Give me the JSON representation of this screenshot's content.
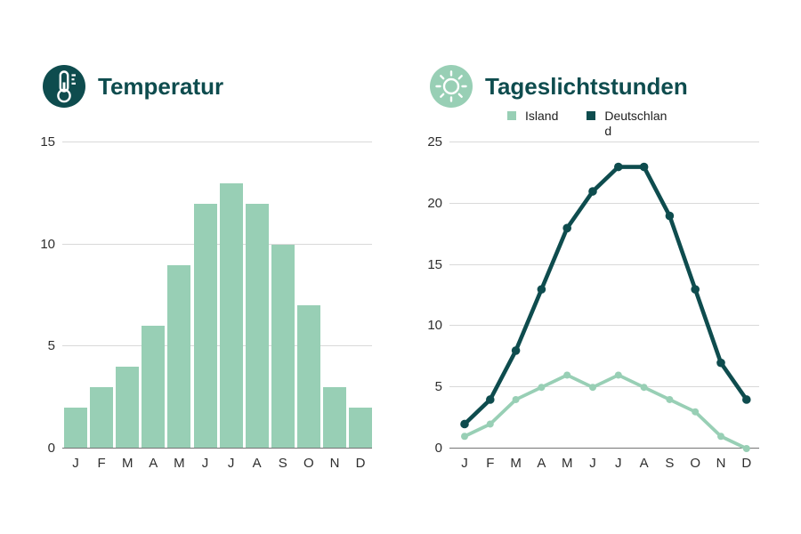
{
  "colors": {
    "dark_teal": "#0e4c4e",
    "light_green": "#98cfb5",
    "gridline": "#d9d9d9",
    "axis_line": "#757575",
    "tick_text": "#2e2e2e",
    "legend_text": "#1f1f1f",
    "background": "#ffffff"
  },
  "chart_data": [
    {
      "type": "bar",
      "title": "Temperatur",
      "icon": "thermometer-icon",
      "categories": [
        "J",
        "F",
        "M",
        "A",
        "M",
        "J",
        "J",
        "A",
        "S",
        "O",
        "N",
        "D"
      ],
      "values": [
        2,
        3,
        4,
        6,
        9,
        12,
        13,
        12,
        10,
        7,
        3,
        2
      ],
      "xlabel": "",
      "ylabel": "",
      "ylim": [
        0,
        15
      ],
      "yticks": [
        0,
        5,
        10,
        15
      ],
      "grid": true,
      "bar_color": "#98cfb5"
    },
    {
      "type": "line",
      "title": "Tageslichtstunden",
      "icon": "sun-icon",
      "categories": [
        "J",
        "F",
        "M",
        "A",
        "M",
        "J",
        "J",
        "A",
        "S",
        "O",
        "N",
        "D"
      ],
      "series": [
        {
          "name": "Island",
          "label": "Island",
          "values": [
            1,
            2,
            4,
            5,
            6,
            5,
            6,
            5,
            4,
            3,
            1,
            0
          ],
          "color": "#98cfb5"
        },
        {
          "name": "Deutschland",
          "label": "Deutschlan\nd",
          "values": [
            2,
            4,
            8,
            13,
            18,
            21,
            23,
            23,
            19,
            13,
            7,
            4
          ],
          "color": "#0e4c4e"
        }
      ],
      "xlabel": "",
      "ylabel": "",
      "ylim": [
        0,
        25
      ],
      "yticks": [
        0,
        5,
        10,
        15,
        20,
        25
      ],
      "grid": true,
      "legend_position": "top-center"
    }
  ]
}
